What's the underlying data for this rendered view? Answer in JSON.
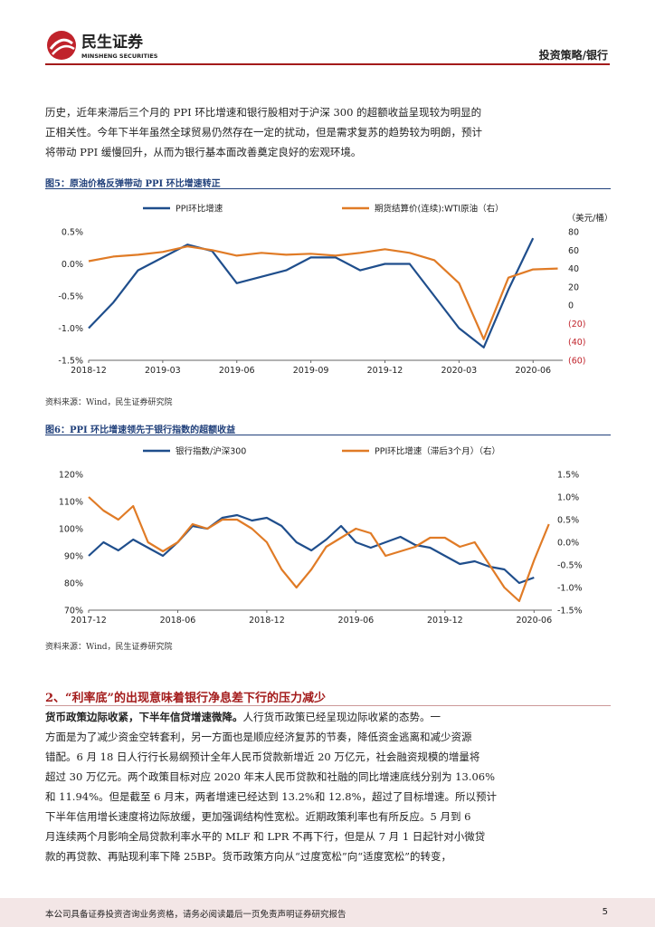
{
  "header": {
    "logo_cn": "民生证券",
    "logo_en": "MINSHENG SECURITIES",
    "category": "投资策略/银行",
    "accent": "#a31b1b"
  },
  "intro_lines": [
    "历史，近年来滞后三个月的 PPI 环比增速和银行股相对于沪深 300 的超额收益呈现较为明显的",
    "正相关性。今年下半年虽然全球贸易仍然存在一定的扰动，但是需求复苏的趋势较为明朗，预计",
    "将带动 PPI 缓慢回升，从而为银行基本面改善奠定良好的宏观环境。"
  ],
  "figure5": {
    "title": "图5：原油价格反弹带动 PPI 环比增速转正",
    "source": "资料来源：Wind，民生证券研究院"
  },
  "figure6": {
    "title": "图6：PPI 环比增速领先于银行指数的超额收益",
    "source": "资料来源：Wind，民生证券研究院"
  },
  "section": {
    "title": "2、“利率底”的出现意味着银行净息差下行的压力减少",
    "lead": "货币政策边际收紧，下半年信贷增速微降。",
    "lines": [
      "人行货币政策已经呈现边际收紧的态势。一",
      "方面是为了减少资金空转套利，另一方面也是顺应经济复苏的节奏，降低资金逃离和减少资源",
      "错配。6 月 18 日人行行长易纲预计全年人民币贷款新增近 20 万亿元，社会融资规模的增量将",
      "超过 30 万亿元。两个政策目标对应 2020 年末人民币贷款和社融的同比增速底线分别为 13.06%",
      "和 11.94%。但是截至 6 月末，两者增速已经达到 13.2%和 12.8%，超过了目标增速。所以预计",
      "下半年信用增长速度将边际放缓，更加强调结构性宽松。近期政策利率也有所反应。5 月到 6",
      "月连续两个月影响全局贷款利率水平的 MLF 和 LPR 不再下行，但是从 7 月 1 日起针对小微贷",
      "款的再贷款、再贴现利率下降 25BP。货币政策方向从“过度宽松”向“适度宽松”的转变，"
    ]
  },
  "footer": {
    "disclaimer": "本公司具备证券投资咨询业务资格，请务必阅读最后一页免责声明证券研究报告",
    "page": "5"
  },
  "chart_data": [
    {
      "type": "line",
      "title": "图5：原油价格反弹带动 PPI 环比增速转正",
      "x_ticks": [
        "2018-12",
        "2019-03",
        "2019-06",
        "2019-09",
        "2019-12",
        "2020-03",
        "2020-06"
      ],
      "y_left": {
        "ticks": [
          "0.5%",
          "0.0%",
          "-0.5%",
          "-1.0%",
          "-1.5%"
        ],
        "ylim": [
          -1.5,
          0.5
        ]
      },
      "y_right": {
        "unit": "（美元/桶）",
        "ticks": [
          "80",
          "60",
          "40",
          "20",
          "0",
          "(20)",
          "(40)",
          "(60)"
        ],
        "ylim": [
          -60,
          80
        ]
      },
      "legend_placement": "top",
      "series": [
        {
          "name": "PPI环比增速",
          "axis": "left",
          "color": "#1f4e8c",
          "points": [
            [
              "2018-12",
              -1.0
            ],
            [
              "2019-01",
              -0.6
            ],
            [
              "2019-02",
              -0.1
            ],
            [
              "2019-03",
              0.1
            ],
            [
              "2019-04",
              0.3
            ],
            [
              "2019-05",
              0.2
            ],
            [
              "2019-06",
              -0.3
            ],
            [
              "2019-07",
              -0.2
            ],
            [
              "2019-08",
              -0.1
            ],
            [
              "2019-09",
              0.1
            ],
            [
              "2019-10",
              0.1
            ],
            [
              "2019-11",
              -0.1
            ],
            [
              "2019-12",
              0.0
            ],
            [
              "2020-01",
              0.0
            ],
            [
              "2020-02",
              -0.5
            ],
            [
              "2020-03",
              -1.0
            ],
            [
              "2020-04",
              -1.3
            ],
            [
              "2020-05",
              -0.4
            ],
            [
              "2020-06",
              0.4
            ]
          ]
        },
        {
          "name": "期货结算价(连续):WTI原油（右）",
          "axis": "right",
          "color": "#e07b26",
          "points": [
            [
              "2018-12",
              48
            ],
            [
              "2019-01",
              53
            ],
            [
              "2019-02",
              55
            ],
            [
              "2019-03",
              58
            ],
            [
              "2019-04",
              64
            ],
            [
              "2019-05",
              60
            ],
            [
              "2019-06",
              54
            ],
            [
              "2019-07",
              57
            ],
            [
              "2019-08",
              55
            ],
            [
              "2019-09",
              56
            ],
            [
              "2019-10",
              54
            ],
            [
              "2019-11",
              57
            ],
            [
              "2019-12",
              61
            ],
            [
              "2020-01",
              57
            ],
            [
              "2020-02",
              49
            ],
            [
              "2020-03",
              24
            ],
            [
              "2020-04",
              -37
            ],
            [
              "2020-05",
              30
            ],
            [
              "2020-06",
              39
            ],
            [
              "2020-07",
              40
            ]
          ]
        }
      ]
    },
    {
      "type": "line",
      "title": "图6：PPI 环比增速领先于银行指数的超额收益",
      "x_ticks": [
        "2017-12",
        "2018-06",
        "2018-12",
        "2019-06",
        "2019-12",
        "2020-06"
      ],
      "y_left": {
        "ticks": [
          "120%",
          "110%",
          "100%",
          "90%",
          "80%",
          "70%"
        ],
        "ylim": [
          70,
          120
        ]
      },
      "y_right": {
        "ticks": [
          "1.5%",
          "1.0%",
          "0.5%",
          "0.0%",
          "-0.5%",
          "-1.0%",
          "-1.5%"
        ],
        "ylim": [
          -1.5,
          1.5
        ]
      },
      "legend_placement": "top",
      "series": [
        {
          "name": "银行指数/沪深300",
          "axis": "left",
          "color": "#1f4e8c",
          "points": [
            [
              "2017-12",
              90
            ],
            [
              "2018-01",
              95
            ],
            [
              "2018-02",
              92
            ],
            [
              "2018-03",
              96
            ],
            [
              "2018-04",
              93
            ],
            [
              "2018-05",
              90
            ],
            [
              "2018-06",
              95
            ],
            [
              "2018-07",
              101
            ],
            [
              "2018-08",
              100
            ],
            [
              "2018-09",
              104
            ],
            [
              "2018-10",
              105
            ],
            [
              "2018-11",
              103
            ],
            [
              "2018-12",
              104
            ],
            [
              "2019-01",
              101
            ],
            [
              "2019-02",
              95
            ],
            [
              "2019-03",
              92
            ],
            [
              "2019-04",
              96
            ],
            [
              "2019-05",
              101
            ],
            [
              "2019-06",
              95
            ],
            [
              "2019-07",
              93
            ],
            [
              "2019-08",
              95
            ],
            [
              "2019-09",
              97
            ],
            [
              "2019-10",
              94
            ],
            [
              "2019-11",
              93
            ],
            [
              "2019-12",
              90
            ],
            [
              "2020-01",
              87
            ],
            [
              "2020-02",
              88
            ],
            [
              "2020-03",
              86
            ],
            [
              "2020-04",
              85
            ],
            [
              "2020-05",
              80
            ],
            [
              "2020-06",
              82
            ]
          ]
        },
        {
          "name": "PPI环比增速（滞后3个月）（右）",
          "axis": "right",
          "color": "#e07b26",
          "points": [
            [
              "2017-12",
              1.0
            ],
            [
              "2018-01",
              0.7
            ],
            [
              "2018-02",
              0.5
            ],
            [
              "2018-03",
              0.8
            ],
            [
              "2018-04",
              0.0
            ],
            [
              "2018-05",
              -0.2
            ],
            [
              "2018-06",
              0.0
            ],
            [
              "2018-07",
              0.4
            ],
            [
              "2018-08",
              0.3
            ],
            [
              "2018-09",
              0.5
            ],
            [
              "2018-10",
              0.5
            ],
            [
              "2018-11",
              0.3
            ],
            [
              "2018-12",
              0.0
            ],
            [
              "2019-01",
              -0.6
            ],
            [
              "2019-02",
              -1.0
            ],
            [
              "2019-03",
              -0.6
            ],
            [
              "2019-04",
              -0.1
            ],
            [
              "2019-05",
              0.1
            ],
            [
              "2019-06",
              0.3
            ],
            [
              "2019-07",
              0.2
            ],
            [
              "2019-08",
              -0.3
            ],
            [
              "2019-09",
              -0.2
            ],
            [
              "2019-10",
              -0.1
            ],
            [
              "2019-11",
              0.1
            ],
            [
              "2019-12",
              0.1
            ],
            [
              "2020-01",
              -0.1
            ],
            [
              "2020-02",
              0.0
            ],
            [
              "2020-03",
              -0.5
            ],
            [
              "2020-04",
              -1.0
            ],
            [
              "2020-05",
              -1.3
            ],
            [
              "2020-06",
              -0.4
            ],
            [
              "2020-07",
              0.4
            ]
          ]
        }
      ]
    }
  ]
}
